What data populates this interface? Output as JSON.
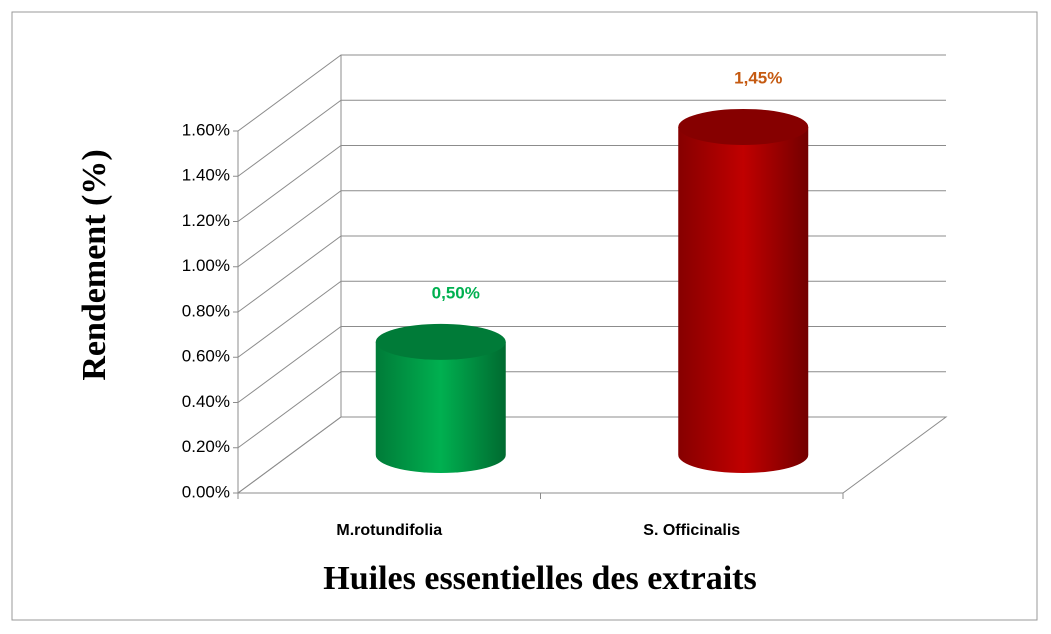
{
  "chart_data": {
    "type": "bar3d",
    "x_label": "Huiles essentielles des extraits",
    "y_label": "Rendement (%)",
    "categories": [
      "M.rotundifolia",
      "S. Officinalis"
    ],
    "values": [
      0.5,
      1.45
    ],
    "value_labels": [
      "0,50%",
      "1,45%"
    ],
    "colors": [
      "#00b050",
      "#c00000"
    ],
    "label_colors": [
      "#00b050",
      "#c55a11"
    ],
    "ylim": [
      0,
      1.6
    ],
    "yticks": [
      {
        "value": 0,
        "label": "0.00%"
      },
      {
        "value": 0.2,
        "label": "0.20%"
      },
      {
        "value": 0.4,
        "label": "0.40%"
      },
      {
        "value": 0.6,
        "label": "0.60%"
      },
      {
        "value": 0.8,
        "label": "0.80%"
      },
      {
        "value": 1.0,
        "label": "1.00%"
      },
      {
        "value": 1.2,
        "label": "1.20%"
      },
      {
        "value": 1.4,
        "label": "1.40%"
      },
      {
        "value": 1.6,
        "label": "1.60%"
      }
    ],
    "grid": true
  }
}
